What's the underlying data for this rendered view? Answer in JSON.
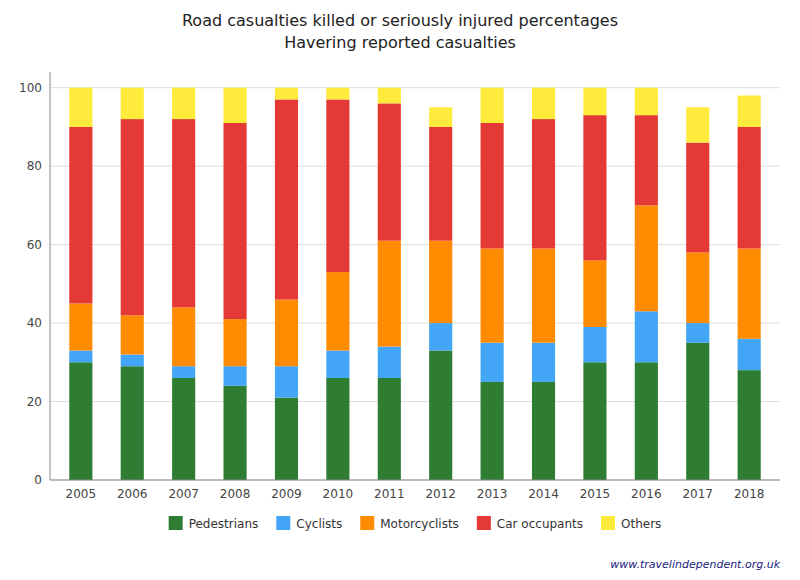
{
  "chart_data": {
    "type": "bar",
    "title": "Road casualties killed or seriously injured percentages",
    "subtitle": "Havering reported casualties",
    "categories": [
      "2005",
      "2006",
      "2007",
      "2008",
      "2009",
      "2010",
      "2011",
      "2012",
      "2013",
      "2014",
      "2015",
      "2016",
      "2017",
      "2018"
    ],
    "series": [
      {
        "name": "Pedestrians",
        "color": "#2e7d32",
        "values": [
          30,
          29,
          26,
          24,
          21,
          26,
          26,
          33,
          25,
          25,
          30,
          30,
          35,
          28
        ]
      },
      {
        "name": "Cyclists",
        "color": "#42a5f5",
        "values": [
          3,
          3,
          3,
          5,
          8,
          7,
          8,
          7,
          10,
          10,
          9,
          13,
          5,
          8
        ]
      },
      {
        "name": "Motorcyclists",
        "color": "#ff8c00",
        "values": [
          12,
          10,
          15,
          12,
          17,
          20,
          27,
          21,
          24,
          24,
          17,
          27,
          18,
          23
        ]
      },
      {
        "name": "Car occupants",
        "color": "#e53935",
        "values": [
          45,
          50,
          48,
          50,
          51,
          44,
          35,
          29,
          32,
          33,
          37,
          23,
          28,
          31
        ]
      },
      {
        "name": "Others",
        "color": "#ffeb3b",
        "values": [
          10,
          8,
          8,
          9,
          3,
          3,
          4,
          5,
          9,
          8,
          7,
          7,
          9,
          8
        ]
      }
    ],
    "stacked": true,
    "ylim": [
      0,
      104
    ],
    "yticks": [
      0,
      20,
      40,
      60,
      80,
      100
    ],
    "grid": true,
    "legend": "bottom",
    "annotations": [
      "www.travelindependent.org.uk"
    ]
  }
}
